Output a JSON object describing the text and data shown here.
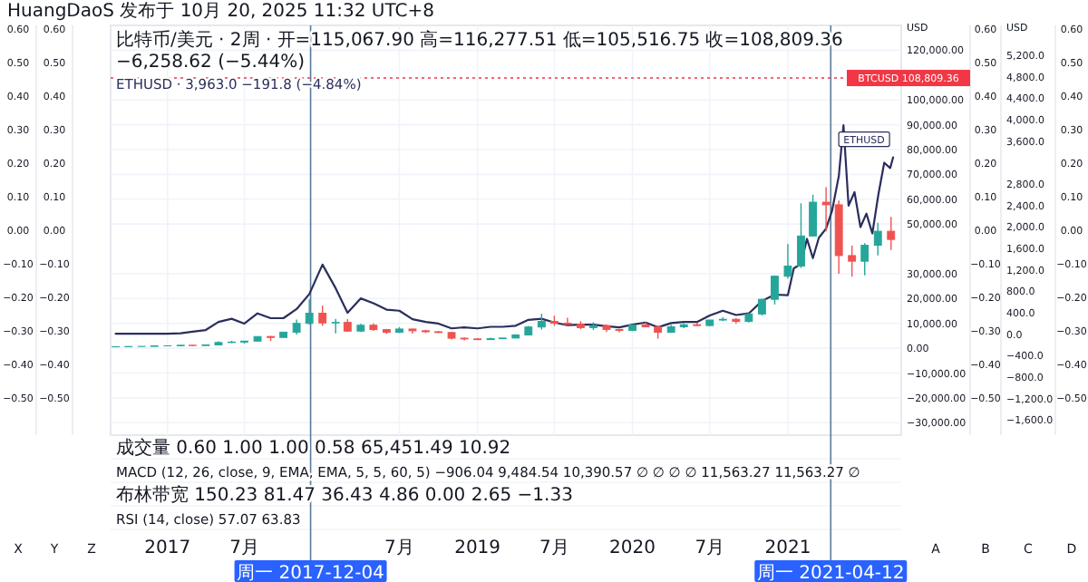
{
  "chart_data": {
    "type": "candlestick",
    "annotations": [
      "HuangDaoS 发布于 10月 20, 2025 11:32 UTC+8",
      "比特币/美元 · 2周 · 开=115,067.90 高=116,277.51 低=105,516.75 收=108,809.36 −6,258.62 (−5.44%)",
      "ETHUSD · 3,963.0 −191.8 (−4.84%)",
      "成交量 0.60 1.00 1.00 0.58 65,451.49 10.92",
      "MACD (12, 26, close, 9, EMA, EMA, 5, 5, 60, 5) −906.04 9,484.54 10,390.57 ∅ ∅ ∅ ∅ 11,563.27 11,563.27 ∅",
      "布林带宽 150.23 81.47 36.43 4.86 0.00 2.65 −1.33",
      "RSI (14, close) 57.07 63.83",
      "X",
      "Y",
      "Z",
      "A",
      "B",
      "C",
      "D"
    ],
    "ylabel": "USD",
    "y2label": "USD",
    "xlim": [
      "2016-08-20",
      "2021-09-25"
    ],
    "xticks": [
      {
        "value": "2017",
        "label": "2017"
      },
      {
        "value": "2017-07",
        "label": "7月"
      },
      {
        "value": "2018-07",
        "label": "7月"
      },
      {
        "value": "2019",
        "label": "2019"
      },
      {
        "value": "2019-07",
        "label": "7月"
      },
      {
        "value": "2020",
        "label": "2020"
      },
      {
        "value": "2020-07",
        "label": "7月"
      },
      {
        "value": "2021",
        "label": "2021"
      }
    ],
    "ylim": [
      -35000,
      130000
    ],
    "yticks": [
      {
        "value": 120000,
        "label": "120,000.00"
      },
      {
        "value": 100000,
        "label": "100,000.00"
      },
      {
        "value": 90000,
        "label": "90,000.00"
      },
      {
        "value": 80000,
        "label": "80,000.00"
      },
      {
        "value": 70000,
        "label": "70,000.00"
      },
      {
        "value": 60000,
        "label": "60,000.00"
      },
      {
        "value": 50000,
        "label": "50,000.00"
      },
      {
        "value": 30000,
        "label": "30,000.00"
      },
      {
        "value": 20000,
        "label": "20,000.00"
      },
      {
        "value": 10000,
        "label": "10,000.00"
      },
      {
        "value": 0,
        "label": "0.00"
      },
      {
        "value": -10000,
        "label": "−10,000.00"
      },
      {
        "value": -20000,
        "label": "−20,000.00"
      },
      {
        "value": -30000,
        "label": "−30,000.00"
      }
    ],
    "y2lim": [
      -1880,
      5760
    ],
    "y2ticks": [
      {
        "value": 5200,
        "label": "5,200.0"
      },
      {
        "value": 4800,
        "label": "4,800.0"
      },
      {
        "value": 4400,
        "label": "4,400.0"
      },
      {
        "value": 4000,
        "label": "4,000.0"
      },
      {
        "value": 3600,
        "label": "3,600.0"
      },
      {
        "value": 2800,
        "label": "2,800.0"
      },
      {
        "value": 2400,
        "label": "2,400.0"
      },
      {
        "value": 2000,
        "label": "2,000.0"
      },
      {
        "value": 1600,
        "label": "1,600.0"
      },
      {
        "value": 1200,
        "label": "1,200.0"
      },
      {
        "value": 800,
        "label": "800.0"
      },
      {
        "value": 400,
        "label": "400.0"
      },
      {
        "value": 0,
        "label": "0.0"
      },
      {
        "value": -400,
        "label": "−400.0"
      },
      {
        "value": -800,
        "label": "−800.0"
      },
      {
        "value": -1200,
        "label": "−1,200.0"
      },
      {
        "value": -1600,
        "label": "−1,600.0"
      }
    ],
    "y3lim": [
      -0.61,
      0.61
    ],
    "y3ticks": [
      {
        "value": 0.6,
        "label": "0.60"
      },
      {
        "value": 0.5,
        "label": "0.50"
      },
      {
        "value": 0.4,
        "label": "0.40"
      },
      {
        "value": 0.3,
        "label": "0.30"
      },
      {
        "value": 0.2,
        "label": "0.20"
      },
      {
        "value": 0.1,
        "label": "0.10"
      },
      {
        "value": 0,
        "label": "0.00"
      },
      {
        "value": -0.1,
        "label": "−0.10"
      },
      {
        "value": -0.2,
        "label": "−0.20"
      },
      {
        "value": -0.3,
        "label": "−0.30"
      },
      {
        "value": -0.4,
        "label": "−0.40"
      },
      {
        "value": -0.5,
        "label": "−0.50"
      }
    ],
    "grid": true,
    "ref_lines": [
      {
        "axis": "x",
        "value": "2017-12-04",
        "label": "周一 2017-12-04",
        "color": "#5b7b9a"
      },
      {
        "axis": "x",
        "value": "2021-04-12",
        "label": "周一 2021-04-12",
        "color": "#5b7b9a"
      },
      {
        "axis": "y",
        "value": 108809.36,
        "label": "BTCUSD 108,809.36",
        "color": "#f23645",
        "line_style": "dotted"
      }
    ],
    "x": [
      "2016-09",
      "2016-10",
      "2016-11",
      "2016-12",
      "2017-01",
      "2017-02",
      "2017-03",
      "2017-04",
      "2017-05",
      "2017-06",
      "2017-07",
      "2017-08",
      "2017-09",
      "2017-10",
      "2017-11",
      "2017-12",
      "2018-01",
      "2018-02",
      "2018-03",
      "2018-04",
      "2018-05",
      "2018-06",
      "2018-07",
      "2018-08",
      "2018-09",
      "2018-10",
      "2018-11",
      "2018-12",
      "2019-01",
      "2019-02",
      "2019-03",
      "2019-04",
      "2019-05",
      "2019-06",
      "2019-07",
      "2019-08",
      "2019-09",
      "2019-10",
      "2019-11",
      "2019-12",
      "2020-01",
      "2020-02",
      "2020-03",
      "2020-04",
      "2020-05",
      "2020-06",
      "2020-07",
      "2020-08",
      "2020-09",
      "2020-10",
      "2020-11",
      "2020-12",
      "2021-01",
      "2021-02",
      "2021-03",
      "2021-04",
      "2021-05",
      "2021-06",
      "2021-07",
      "2021-08",
      "2021-09"
    ],
    "ohlc": [
      [
        573,
        610,
        570,
        609
      ],
      [
        609,
        740,
        604,
        700
      ],
      [
        700,
        760,
        680,
        745
      ],
      [
        745,
        975,
        740,
        964
      ],
      [
        964,
        1150,
        750,
        970
      ],
      [
        970,
        1200,
        920,
        1190
      ],
      [
        1190,
        1290,
        890,
        1080
      ],
      [
        1080,
        1350,
        1060,
        1350
      ],
      [
        1350,
        2760,
        1350,
        2300
      ],
      [
        2300,
        2980,
        2100,
        2480
      ],
      [
        2480,
        2900,
        1830,
        2870
      ],
      [
        2870,
        4750,
        2670,
        4700
      ],
      [
        4700,
        4980,
        2970,
        4340
      ],
      [
        4340,
        6470,
        4150,
        6460
      ],
      [
        6460,
        11500,
        5500,
        10000
      ],
      [
        10000,
        19700,
        9500,
        14100
      ],
      [
        14100,
        17200,
        9000,
        10200
      ],
      [
        10200,
        11800,
        6000,
        10400
      ],
      [
        10400,
        11700,
        6600,
        6900
      ],
      [
        6900,
        9800,
        6500,
        9250
      ],
      [
        9250,
        9990,
        7000,
        7500
      ],
      [
        7500,
        7760,
        5750,
        6400
      ],
      [
        6400,
        8500,
        6100,
        7730
      ],
      [
        7730,
        7760,
        5880,
        7030
      ],
      [
        7030,
        7400,
        6100,
        6630
      ],
      [
        6630,
        7000,
        6200,
        6320
      ],
      [
        6320,
        6580,
        3500,
        4040
      ],
      [
        4040,
        4320,
        3150,
        3740
      ],
      [
        3740,
        4100,
        3350,
        3460
      ],
      [
        3460,
        4200,
        3400,
        3850
      ],
      [
        3850,
        4130,
        3700,
        4100
      ],
      [
        4100,
        5600,
        4100,
        5350
      ],
      [
        5350,
        9000,
        5300,
        8550
      ],
      [
        8550,
        13900,
        7500,
        10800
      ],
      [
        10800,
        13100,
        9000,
        10100
      ],
      [
        10100,
        12300,
        9400,
        9630
      ],
      [
        9630,
        10900,
        7700,
        8300
      ],
      [
        8300,
        10500,
        7300,
        9150
      ],
      [
        9150,
        9500,
        6500,
        7570
      ],
      [
        7570,
        7750,
        6430,
        7200
      ],
      [
        7200,
        9600,
        6850,
        9350
      ],
      [
        9350,
        10500,
        8500,
        8600
      ],
      [
        8600,
        9200,
        3850,
        6440
      ],
      [
        6440,
        9460,
        6150,
        8630
      ],
      [
        8630,
        10080,
        8100,
        9450
      ],
      [
        9450,
        10400,
        8900,
        9140
      ],
      [
        9140,
        11450,
        8900,
        11350
      ],
      [
        11350,
        12480,
        10900,
        11650
      ],
      [
        11650,
        12100,
        9900,
        10780
      ],
      [
        10780,
        14100,
        10400,
        13800
      ],
      [
        13800,
        19900,
        13200,
        19700
      ],
      [
        19700,
        29300,
        17600,
        28990
      ],
      [
        28990,
        41950,
        28100,
        33100
      ],
      [
        33100,
        58350,
        32300,
        45200
      ],
      [
        45200,
        61800,
        45000,
        58800
      ],
      [
        58800,
        64850,
        47000,
        57750
      ],
      [
        57750,
        59500,
        30000,
        37300
      ],
      [
        37300,
        41300,
        28800,
        35040
      ],
      [
        35040,
        42300,
        29300,
        41460
      ],
      [
        41460,
        50500,
        37400,
        47100
      ],
      [
        47100,
        52900,
        39600,
        43800
      ]
    ],
    "colors": [
      "#26a69a",
      "#26a69a",
      "#26a69a",
      "#26a69a",
      "#26a69a",
      "#26a69a",
      "#ef5350",
      "#26a69a",
      "#26a69a",
      "#26a69a",
      "#26a69a",
      "#26a69a",
      "#ef5350",
      "#26a69a",
      "#26a69a",
      "#26a69a",
      "#ef5350",
      "#26a69a",
      "#ef5350",
      "#26a69a",
      "#ef5350",
      "#ef5350",
      "#26a69a",
      "#ef5350",
      "#ef5350",
      "#ef5350",
      "#ef5350",
      "#ef5350",
      "#ef5350",
      "#26a69a",
      "#26a69a",
      "#26a69a",
      "#26a69a",
      "#26a69a",
      "#ef5350",
      "#ef5350",
      "#ef5350",
      "#26a69a",
      "#ef5350",
      "#ef5350",
      "#26a69a",
      "#ef5350",
      "#ef5350",
      "#26a69a",
      "#26a69a",
      "#ef5350",
      "#26a69a",
      "#26a69a",
      "#ef5350",
      "#26a69a",
      "#26a69a",
      "#26a69a",
      "#26a69a",
      "#26a69a",
      "#26a69a",
      "#ef5350",
      "#ef5350",
      "#ef5350",
      "#26a69a",
      "#26a69a",
      "#ef5350"
    ],
    "series": [
      {
        "name": "ETHUSD",
        "type": "line",
        "axis": "y2",
        "color": "#2a2e5c",
        "x": [
          "2016-09",
          "2016-10",
          "2016-11",
          "2016-12",
          "2017-01",
          "2017-02",
          "2017-03",
          "2017-04",
          "2017-05",
          "2017-06",
          "2017-07",
          "2017-08",
          "2017-09",
          "2017-10",
          "2017-11",
          "2017-12",
          "2018-01",
          "2018-02",
          "2018-03",
          "2018-04",
          "2018-05",
          "2018-06",
          "2018-07",
          "2018-08",
          "2018-09",
          "2018-10",
          "2018-11",
          "2018-12",
          "2019-01",
          "2019-02",
          "2019-03",
          "2019-04",
          "2019-05",
          "2019-06",
          "2019-07",
          "2019-08",
          "2019-09",
          "2019-10",
          "2019-11",
          "2019-12",
          "2020-01",
          "2020-02",
          "2020-03",
          "2020-04",
          "2020-05",
          "2020-06",
          "2020-07",
          "2020-08",
          "2020-09",
          "2020-10",
          "2020-11",
          "2020-12",
          "2021-01-01",
          "2021-01-15",
          "2021-02-01",
          "2021-02-15",
          "2021-03-01",
          "2021-03-15",
          "2021-04-01",
          "2021-04-15",
          "2021-05-01",
          "2021-05-12",
          "2021-05-24",
          "2021-06-07",
          "2021-06-21",
          "2021-07-05",
          "2021-07-19",
          "2021-08-02",
          "2021-08-16",
          "2021-08-30",
          "2021-09-06"
        ],
        "values": [
          10,
          10,
          10,
          10,
          10,
          20,
          50,
          80,
          230,
          290,
          200,
          390,
          300,
          300,
          470,
          750,
          1300,
          860,
          400,
          670,
          580,
          460,
          440,
          280,
          230,
          200,
          110,
          130,
          110,
          140,
          140,
          160,
          270,
          290,
          220,
          170,
          180,
          180,
          150,
          130,
          180,
          220,
          130,
          210,
          230,
          230,
          350,
          440,
          360,
          390,
          620,
          740,
          730,
          1230,
          1310,
          1780,
          1420,
          1800,
          1970,
          2300,
          2950,
          3900,
          2400,
          2650,
          2000,
          2250,
          1880,
          2600,
          3200,
          3100,
          3300
        ]
      }
    ]
  }
}
